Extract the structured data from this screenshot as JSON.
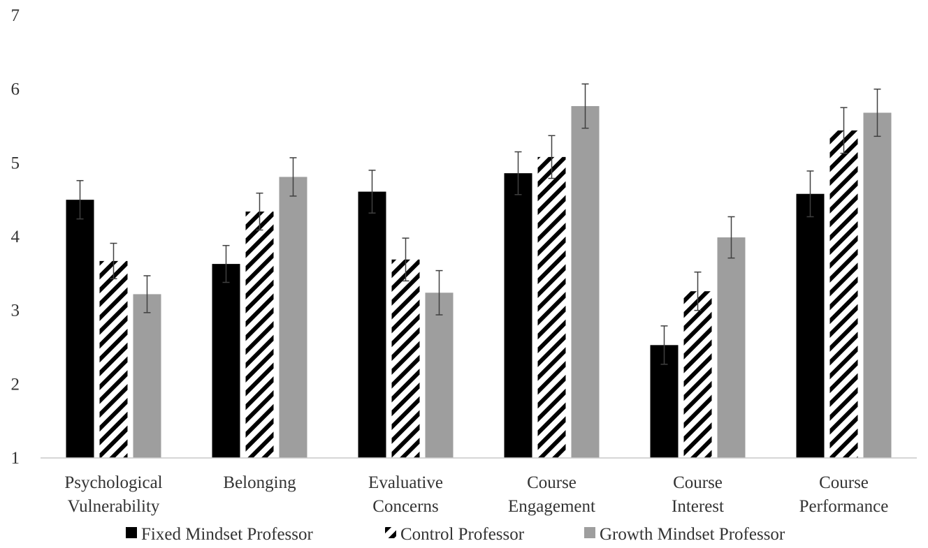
{
  "chart_data": {
    "type": "bar",
    "categories": [
      [
        "Psychological",
        "Vulnerability"
      ],
      [
        "Belonging"
      ],
      [
        "Evaluative",
        "Concerns"
      ],
      [
        "Course",
        "Engagement"
      ],
      [
        "Course",
        "Interest"
      ],
      [
        "Course",
        "Performance"
      ]
    ],
    "series": [
      {
        "name": "Fixed Mindset Professor",
        "color": "#000000",
        "pattern": "solid",
        "values": [
          4.5,
          3.63,
          4.61,
          4.86,
          2.53,
          4.58
        ],
        "error": [
          0.26,
          0.25,
          0.29,
          0.29,
          0.26,
          0.31
        ]
      },
      {
        "name": "Control Professor",
        "color": "#000000",
        "pattern": "diagonal-stripes",
        "values": [
          3.67,
          4.34,
          3.69,
          5.08,
          3.26,
          5.44
        ],
        "error": [
          0.24,
          0.25,
          0.29,
          0.29,
          0.26,
          0.31
        ]
      },
      {
        "name": "Growth Mindset Professor",
        "color": "#9e9e9e",
        "pattern": "solid",
        "values": [
          3.22,
          4.81,
          3.24,
          5.77,
          3.99,
          5.68
        ],
        "error": [
          0.25,
          0.26,
          0.3,
          0.3,
          0.28,
          0.32
        ]
      }
    ],
    "title": "",
    "xlabel": "",
    "ylabel": "",
    "ylim": [
      1,
      7
    ],
    "yticks": [
      1,
      2,
      3,
      4,
      5,
      6,
      7
    ],
    "grid": false,
    "legend_position": "bottom"
  }
}
